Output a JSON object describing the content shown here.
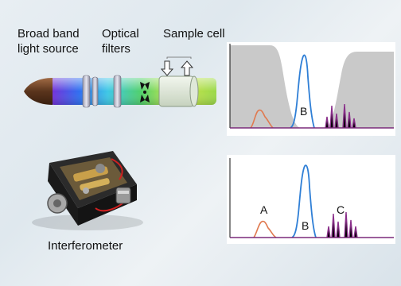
{
  "labels": {
    "broadband": "Broad band\nlight source",
    "optical": "Optical\nfilters",
    "sample": "Sample cell",
    "interferometer": "Interferometer"
  },
  "annotations": {
    "top_b": "B",
    "bottom_a": "A",
    "bottom_b": "B",
    "bottom_c": "C"
  },
  "colors": {
    "peak_a": "#e07a50",
    "peak_b": "#2f7fd6",
    "peak_c": "#8a2f8a",
    "filter_shade": "#c9c9c9",
    "baseline": "#7a2a7a"
  }
}
